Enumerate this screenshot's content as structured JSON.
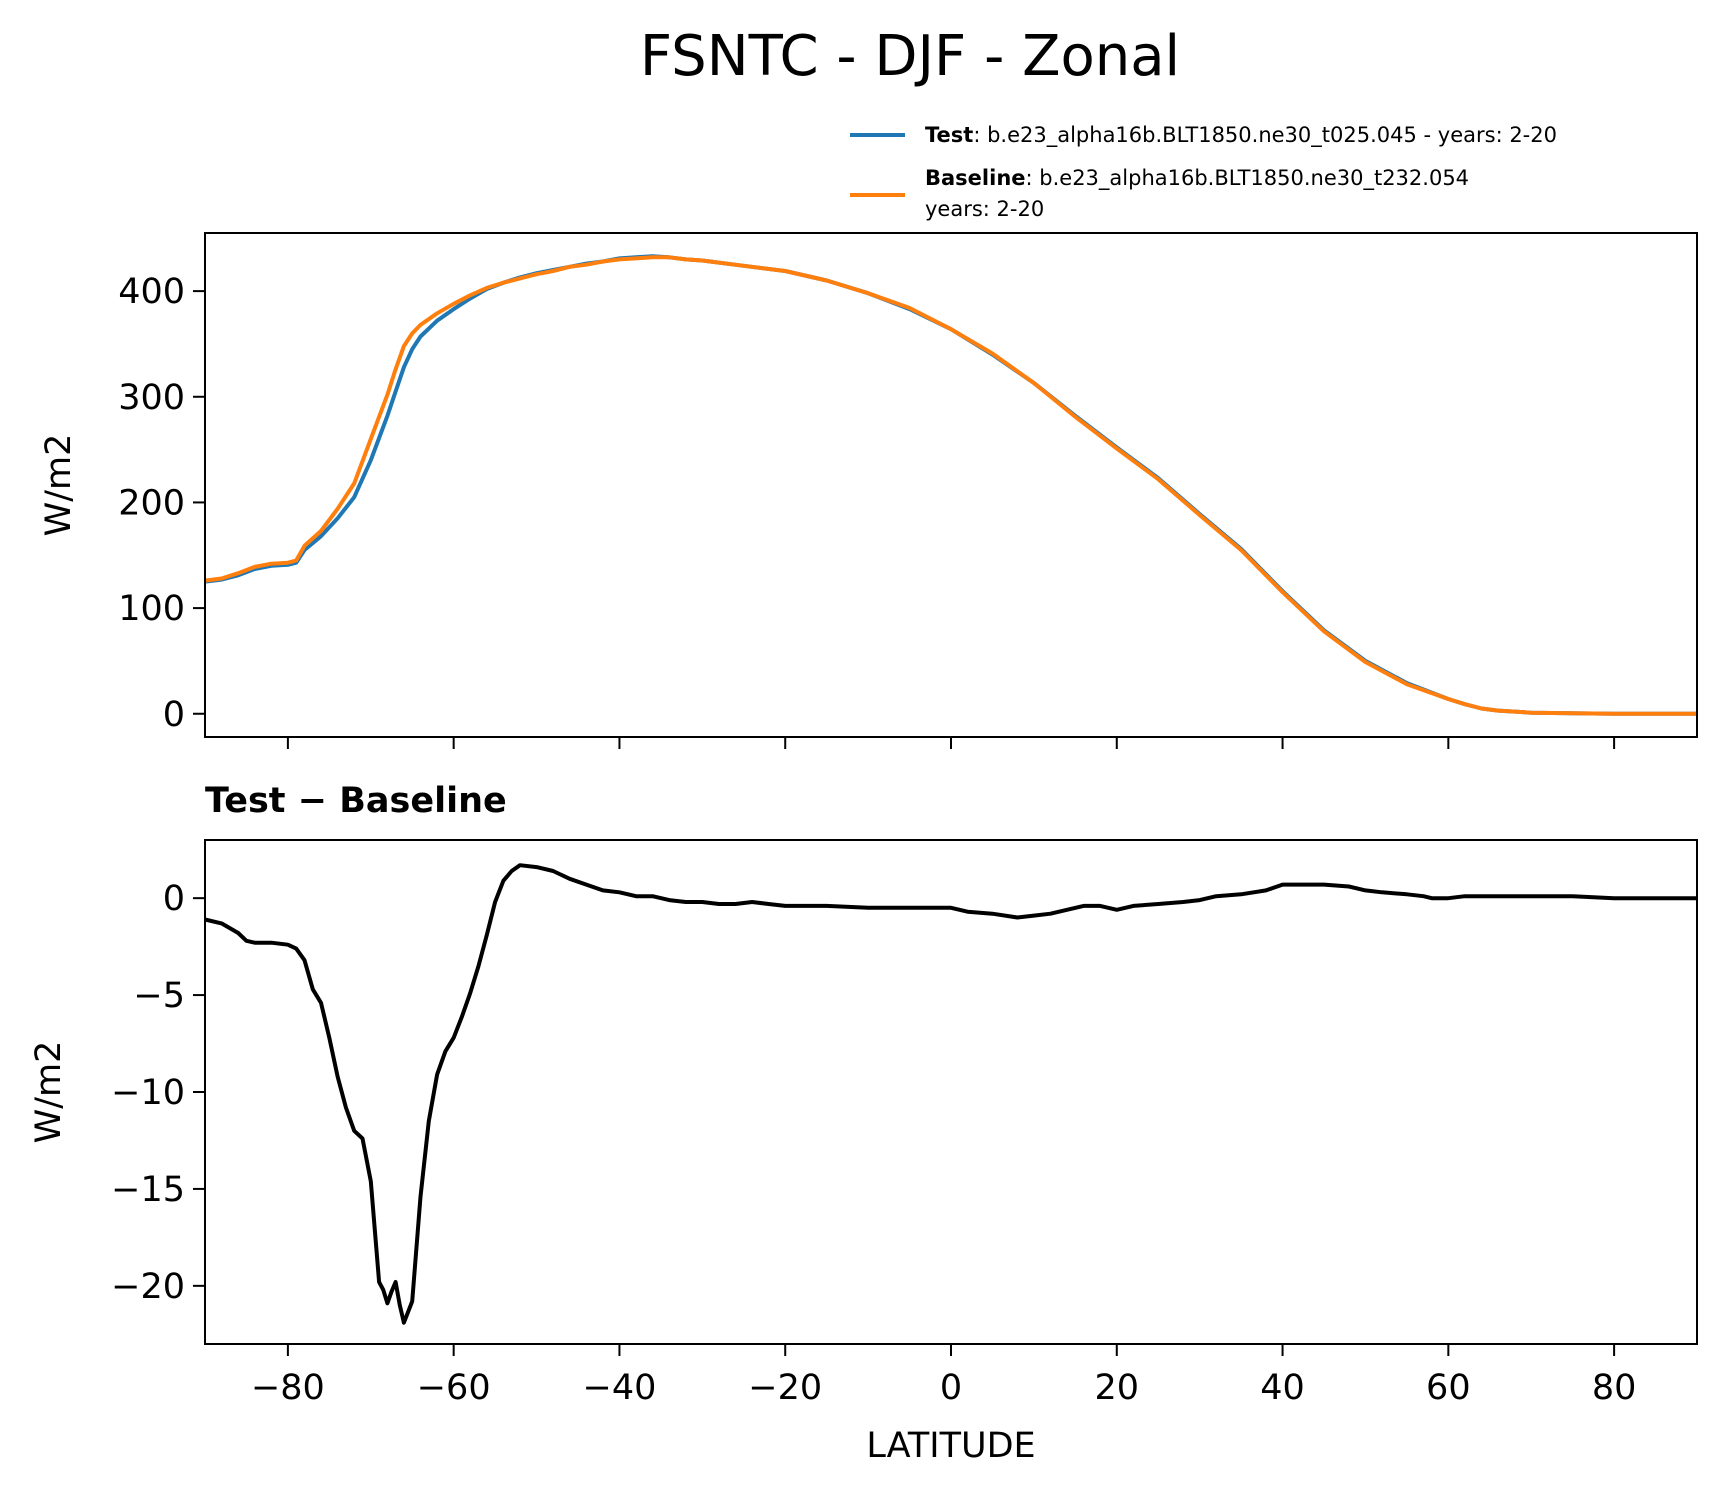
{
  "title": "FSNTC - DJF - Zonal",
  "colors": {
    "test": "#1f77b4",
    "baseline": "#ff7f0e",
    "diff": "#000000"
  },
  "legend": {
    "placement": "top-right",
    "test_label": "Test",
    "test_desc": ": b.e23_alpha16b.BLT1850.ne30_t025.045 - years: 2-20",
    "baseline_label": "Baseline",
    "baseline_desc": ": b.e23_alpha16b.BLT1850.ne30_t232.054",
    "baseline_desc2": "years: 2-20"
  },
  "diff_panel": {
    "title": "Test − Baseline"
  },
  "chart_data": [
    {
      "type": "line",
      "title": "FSNTC - DJF - Zonal",
      "xlabel": "",
      "ylabel": "W/m2",
      "xlim": [
        -90,
        90
      ],
      "ylim": [
        -22,
        455
      ],
      "xticks": [
        -80,
        -60,
        -40,
        -20,
        0,
        20,
        40,
        60,
        80
      ],
      "yticks": [
        0,
        100,
        200,
        300,
        400
      ],
      "ytick_labels": [
        "0",
        "100",
        "200",
        "300",
        "400"
      ],
      "grid": false,
      "series": [
        {
          "name": "Test",
          "x": [
            -90,
            -88,
            -86,
            -84,
            -82,
            -80,
            -79,
            -78,
            -76,
            -74,
            -72,
            -70,
            -68,
            -67,
            -66,
            -65,
            -64,
            -62,
            -60,
            -58,
            -56,
            -54,
            -52,
            -50,
            -48,
            -46,
            -44,
            -42,
            -40,
            -38,
            -36,
            -34,
            -32,
            -30,
            -25,
            -20,
            -15,
            -10,
            -5,
            0,
            5,
            10,
            15,
            20,
            25,
            30,
            35,
            40,
            45,
            50,
            55,
            60,
            62,
            64,
            66,
            68,
            70,
            75,
            80,
            85,
            90
          ],
          "values": [
            125,
            127,
            131,
            137,
            140,
            141,
            143,
            155,
            168,
            185,
            205,
            240,
            282,
            305,
            328,
            345,
            357,
            372,
            383,
            393,
            402,
            408,
            413,
            417,
            420,
            423,
            426,
            428,
            431,
            432,
            433,
            432,
            430,
            429,
            424,
            419,
            410,
            398,
            383,
            364,
            340,
            313,
            282,
            252,
            223,
            189,
            156,
            116,
            79,
            50,
            29,
            14,
            9,
            5,
            3,
            2,
            1,
            0.5,
            0,
            0,
            0
          ]
        },
        {
          "name": "Baseline",
          "x": [
            -90,
            -88,
            -86,
            -84,
            -82,
            -80,
            -79,
            -78,
            -76,
            -74,
            -72,
            -70,
            -68,
            -67,
            -66,
            -65,
            -64,
            -62,
            -60,
            -58,
            -56,
            -54,
            -52,
            -50,
            -48,
            -46,
            -44,
            -42,
            -40,
            -38,
            -36,
            -34,
            -32,
            -30,
            -25,
            -20,
            -15,
            -10,
            -5,
            0,
            5,
            10,
            15,
            20,
            25,
            30,
            35,
            40,
            45,
            50,
            55,
            60,
            62,
            64,
            66,
            68,
            70,
            75,
            80,
            85,
            90
          ],
          "values": [
            126,
            128,
            133,
            139,
            142,
            143,
            145,
            159,
            173,
            194,
            218,
            260,
            302,
            326,
            348,
            360,
            368,
            379,
            388,
            396,
            403,
            408,
            412,
            416,
            419,
            423,
            425,
            428,
            430,
            431,
            432,
            432,
            430,
            429,
            424,
            419,
            410,
            398,
            384,
            364,
            341,
            313,
            281,
            251,
            222,
            188,
            155,
            115,
            78,
            49,
            28,
            14,
            9,
            5,
            3,
            2,
            1,
            0.5,
            0,
            0,
            0
          ]
        }
      ]
    },
    {
      "type": "line",
      "title": "Test − Baseline",
      "xlabel": "LATITUDE",
      "ylabel": "W/m2",
      "xlim": [
        -90,
        90
      ],
      "ylim": [
        -23,
        3
      ],
      "xticks": [
        -80,
        -60,
        -40,
        -20,
        0,
        20,
        40,
        60,
        80
      ],
      "xtick_labels": [
        "−80",
        "−60",
        "−40",
        "−20",
        "0",
        "20",
        "40",
        "60",
        "80"
      ],
      "yticks": [
        0,
        -5,
        -10,
        -15,
        -20
      ],
      "ytick_labels": [
        "0",
        "−5",
        "−10",
        "−15",
        "−20"
      ],
      "grid": false,
      "series": [
        {
          "name": "Test − Baseline",
          "x": [
            -90,
            -88,
            -86,
            -85,
            -84,
            -82,
            -80,
            -79,
            -78,
            -77,
            -76,
            -75,
            -74,
            -73,
            -72,
            -71,
            -70,
            -69,
            -68.5,
            -68,
            -67.5,
            -67,
            -66.5,
            -66,
            -65,
            -64,
            -63,
            -62,
            -61,
            -60,
            -59,
            -58,
            -57,
            -56,
            -55,
            -54,
            -53,
            -52,
            -50,
            -48,
            -46,
            -44,
            -42,
            -40,
            -38,
            -36,
            -34,
            -32,
            -30,
            -28,
            -26,
            -24,
            -22,
            -20,
            -15,
            -10,
            -5,
            0,
            2,
            5,
            8,
            10,
            12,
            14,
            16,
            18,
            20,
            22,
            25,
            28,
            30,
            32,
            35,
            38,
            40,
            42,
            45,
            48,
            50,
            52,
            55,
            57,
            58,
            60,
            62,
            65,
            70,
            75,
            80,
            85,
            90
          ],
          "values": [
            -1.1,
            -1.3,
            -1.8,
            -2.2,
            -2.3,
            -2.3,
            -2.4,
            -2.6,
            -3.2,
            -4.7,
            -5.4,
            -7.2,
            -9.2,
            -10.8,
            -12.0,
            -12.4,
            -14.6,
            -19.8,
            -20.2,
            -20.9,
            -20.3,
            -19.8,
            -21.0,
            -21.9,
            -20.8,
            -15.4,
            -11.5,
            -9.1,
            -7.9,
            -7.2,
            -6.1,
            -4.9,
            -3.5,
            -1.9,
            -0.2,
            0.9,
            1.4,
            1.7,
            1.6,
            1.4,
            1.0,
            0.7,
            0.4,
            0.3,
            0.1,
            0.1,
            -0.1,
            -0.2,
            -0.2,
            -0.3,
            -0.3,
            -0.2,
            -0.3,
            -0.4,
            -0.4,
            -0.5,
            -0.5,
            -0.5,
            -0.7,
            -0.8,
            -1.0,
            -0.9,
            -0.8,
            -0.6,
            -0.4,
            -0.4,
            -0.6,
            -0.4,
            -0.3,
            -0.2,
            -0.1,
            0.1,
            0.2,
            0.4,
            0.7,
            0.7,
            0.7,
            0.6,
            0.4,
            0.3,
            0.2,
            0.1,
            0.0,
            0.0,
            0.1,
            0.1,
            0.1,
            0.1,
            0.0,
            0.0,
            0.0
          ]
        }
      ]
    }
  ]
}
